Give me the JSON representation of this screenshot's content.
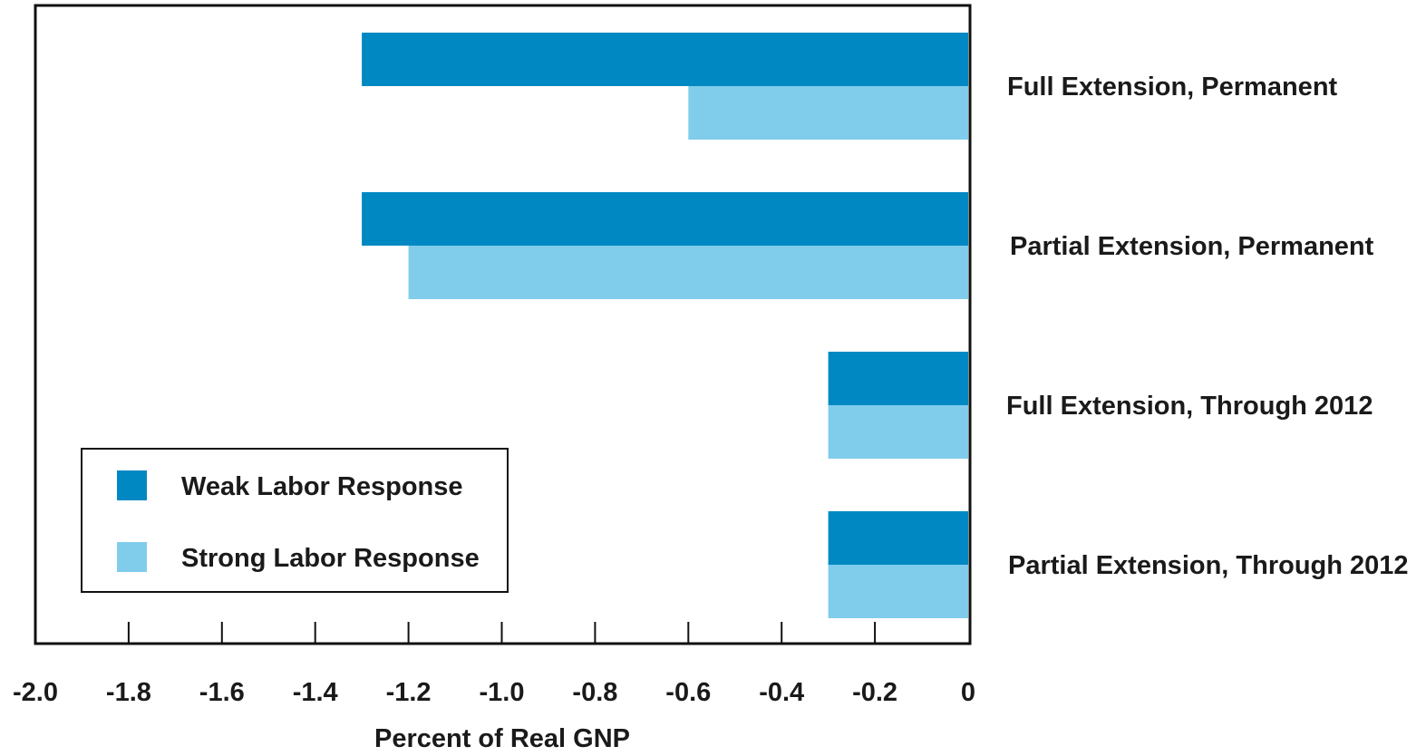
{
  "chart_data": {
    "type": "bar",
    "orientation": "horizontal",
    "categories": [
      "Full Extension, Permanent",
      "Partial Extension, Permanent",
      "Full Extension, Through 2012",
      "Partial Extension, Through 2012"
    ],
    "series": [
      {
        "name": "Weak Labor Response",
        "color": "#0088c2",
        "values": [
          -1.3,
          -1.3,
          -0.3,
          -0.3
        ]
      },
      {
        "name": "Strong Labor Response",
        "color": "#80cceb",
        "values": [
          -0.6,
          -1.2,
          -0.3,
          -0.3
        ]
      }
    ],
    "xlabel": "Percent of Real GNP",
    "xlim": [
      -2.0,
      0
    ],
    "x_ticks": [
      -2.0,
      -1.8,
      -1.6,
      -1.4,
      -1.2,
      -1.0,
      -0.8,
      -0.6,
      -0.4,
      -0.2,
      0
    ],
    "x_tick_labels": [
      "-2.0",
      "-1.8",
      "-1.6",
      "-1.4",
      "-1.2",
      "-1.0",
      "-0.8",
      "-0.6",
      "-0.4",
      "-0.2",
      "0"
    ],
    "category_label_position": "right",
    "legend_position": "bottom-left",
    "grid": false
  }
}
